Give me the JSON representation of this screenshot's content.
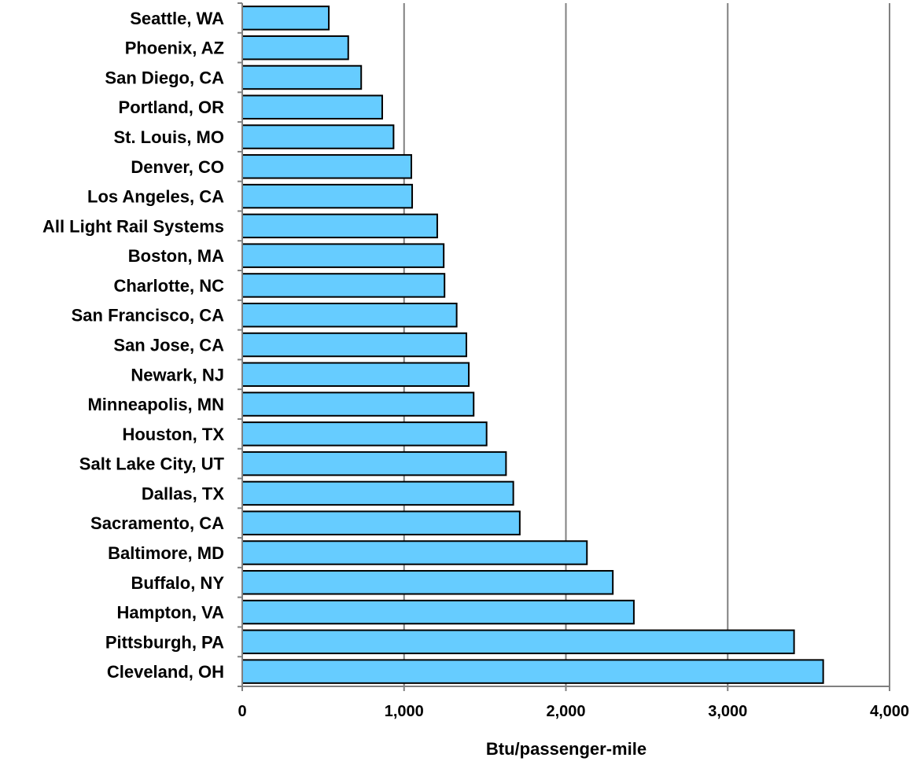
{
  "chart_data": {
    "type": "bar",
    "orientation": "horizontal",
    "categories": [
      "Seattle, WA",
      "Phoenix, AZ",
      "San Diego, CA",
      "Portland, OR",
      "St. Louis, MO",
      "Denver, CO",
      "Los Angeles, CA",
      "All Light Rail Systems",
      "Boston, MA",
      "Charlotte, NC",
      "San Francisco, CA",
      "San Jose, CA",
      "Newark, NJ",
      "Minneapolis, MN",
      "Houston, TX",
      "Salt Lake City, UT",
      "Dallas, TX",
      "Sacramento, CA",
      "Baltimore, MD",
      "Buffalo, NY",
      "Hampton, VA",
      "Pittsburgh, PA",
      "Cleveland, OH"
    ],
    "values": [
      535,
      655,
      735,
      865,
      935,
      1045,
      1050,
      1205,
      1245,
      1250,
      1325,
      1385,
      1400,
      1430,
      1510,
      1630,
      1675,
      1715,
      2130,
      2290,
      2420,
      3410,
      3590
    ],
    "title": "",
    "xlabel": "Btu/passenger-mile",
    "ylabel": "",
    "xlim": [
      0,
      4000
    ],
    "ticks": [
      0,
      1000,
      2000,
      3000,
      4000
    ],
    "tick_labels": [
      "0",
      "1,000",
      "2,000",
      "3,000",
      "4,000"
    ],
    "grid": "vertical",
    "legend": "none",
    "colors": {
      "bar_fill": "#66CCFF",
      "bar_stroke": "#000000",
      "grid": "#808080",
      "axis": "#808080"
    }
  }
}
